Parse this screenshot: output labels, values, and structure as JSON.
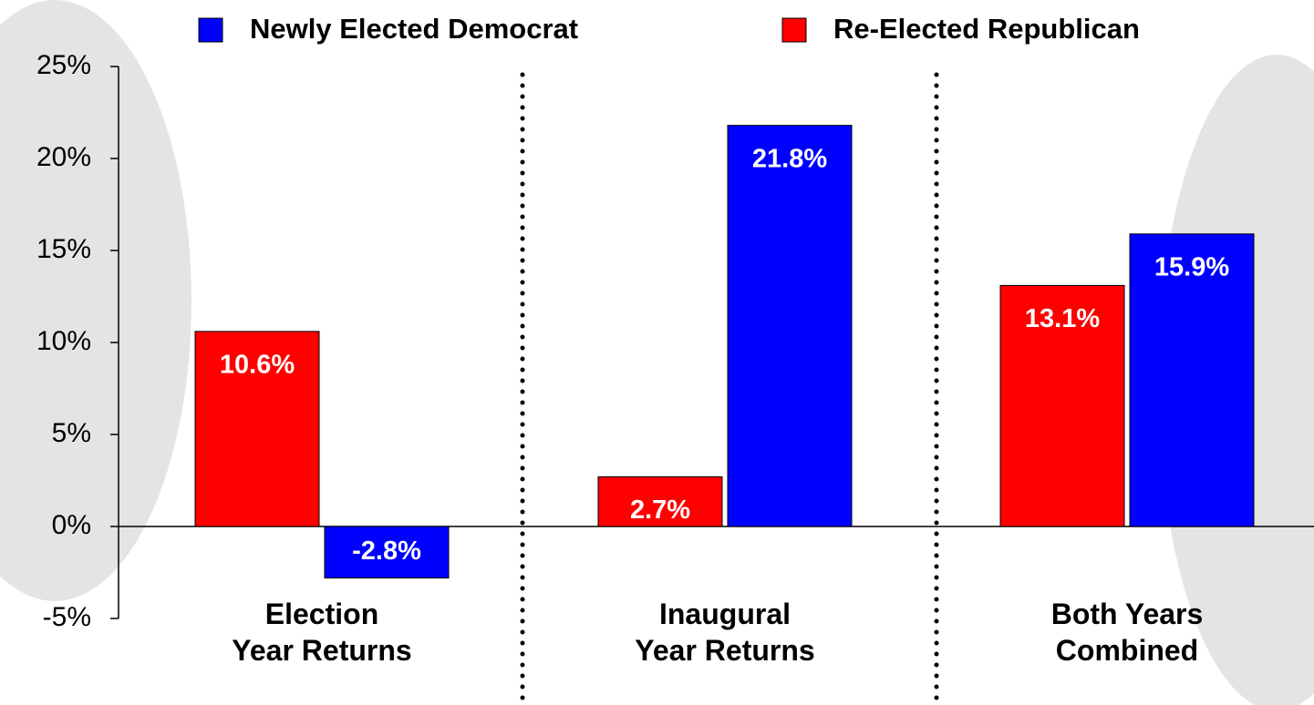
{
  "chart_data": {
    "type": "bar",
    "categories": [
      "Election\nYear Returns",
      "Inaugural\nYear Returns",
      "Both Years\nCombined"
    ],
    "series": [
      {
        "name": "Newly Elected Democrat",
        "color": "#0000ff",
        "values": [
          -2.8,
          21.8,
          15.9
        ],
        "value_labels": [
          "-2.8%",
          "21.8%",
          "15.9%"
        ]
      },
      {
        "name": "Re-Elected Republican",
        "color": "#ff0000",
        "values": [
          10.6,
          2.7,
          13.1
        ],
        "value_labels": [
          "10.6%",
          "2.7%",
          "13.1%"
        ]
      }
    ],
    "ylim": [
      -5,
      25
    ],
    "yticks": [
      {
        "value": -5,
        "label": "-5%"
      },
      {
        "value": 0,
        "label": "0%"
      },
      {
        "value": 5,
        "label": "5%"
      },
      {
        "value": 10,
        "label": "10%"
      },
      {
        "value": 15,
        "label": "15%"
      },
      {
        "value": 20,
        "label": "20%"
      },
      {
        "value": 25,
        "label": "25%"
      }
    ],
    "legend": "top"
  }
}
